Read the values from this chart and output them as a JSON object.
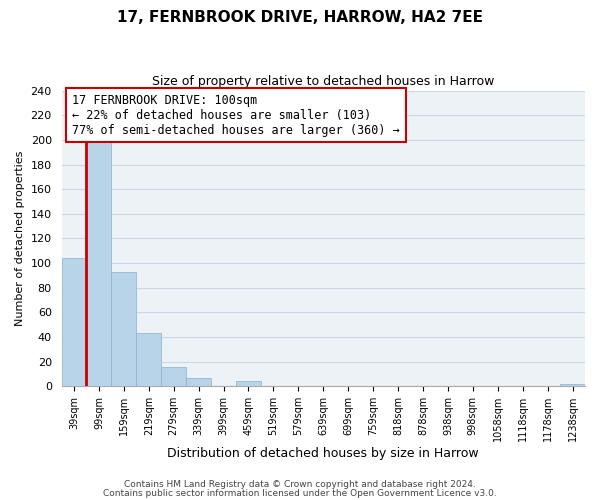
{
  "title": "17, FERNBROOK DRIVE, HARROW, HA2 7EE",
  "subtitle": "Size of property relative to detached houses in Harrow",
  "xlabel": "Distribution of detached houses by size in Harrow",
  "ylabel": "Number of detached properties",
  "bar_labels": [
    "39sqm",
    "99sqm",
    "159sqm",
    "219sqm",
    "279sqm",
    "339sqm",
    "399sqm",
    "459sqm",
    "519sqm",
    "579sqm",
    "639sqm",
    "699sqm",
    "759sqm",
    "818sqm",
    "878sqm",
    "938sqm",
    "998sqm",
    "1058sqm",
    "1118sqm",
    "1178sqm",
    "1238sqm"
  ],
  "bar_values": [
    104,
    201,
    93,
    43,
    16,
    7,
    0,
    4,
    0,
    0,
    0,
    0,
    0,
    0,
    0,
    0,
    0,
    0,
    0,
    0,
    2
  ],
  "bar_color": "#b8d4e8",
  "bar_edge_color": "#8ab0cc",
  "highlight_bar_index": 1,
  "vline_color": "#cc0000",
  "ylim": [
    0,
    240
  ],
  "yticks": [
    0,
    20,
    40,
    60,
    80,
    100,
    120,
    140,
    160,
    180,
    200,
    220,
    240
  ],
  "annotation_box_text": "17 FERNBROOK DRIVE: 100sqm\n← 22% of detached houses are smaller (103)\n77% of semi-detached houses are larger (360) →",
  "footer_line1": "Contains HM Land Registry data © Crown copyright and database right 2024.",
  "footer_line2": "Contains public sector information licensed under the Open Government Licence v3.0.",
  "grid_color": "#c8d8e8",
  "background_color": "#edf2f7"
}
